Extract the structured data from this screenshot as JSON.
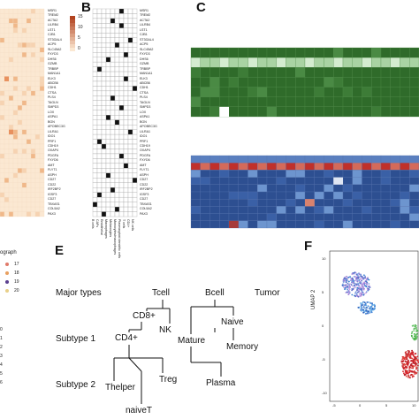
{
  "panels": {
    "B": "B",
    "C": "C",
    "E": "E",
    "F": "F"
  },
  "genes": [
    "MSR1",
    "TREM2",
    "ACTA2",
    "LILRB4",
    "LST1",
    "CJB1",
    "ST3GAL4",
    "ACP5",
    "SLC45A2",
    "FXYD3",
    "DHS6",
    "GZMB",
    "TRBBP",
    "MAN1A1",
    "ELK3",
    "ABCB6",
    "CDH1",
    "CTSA",
    "PLS4",
    "TAGLN",
    "SMPD3",
    "LOX",
    "ASPA1",
    "BGN",
    "APOBEC3G",
    "LILRA1",
    "IDO1",
    "PRF1",
    "CDH19",
    "OXAP4",
    "PDGFA",
    "FXYD6",
    "AMT",
    "FLYT1",
    "ASPH",
    "CD27",
    "CD22",
    "IRF2BP2",
    "IGSF3",
    "CD27",
    "TBXAS1",
    "COL5A2",
    "PAX3"
  ],
  "panel_a_legend": [
    "15",
    "10",
    "5",
    "0"
  ],
  "panel_b_columns": [
    "B cells",
    "CAFs",
    "Endothelial",
    "Macrophages",
    "Melanocytes",
    "Monocytes/macrophages",
    "Plasmacytoid dendritic cells",
    "T cells",
    "CD4+",
    "NK cells"
  ],
  "panel_d_legend": {
    "title_fragment": "ograph",
    "items": [
      {
        "label": "17",
        "color": "#e07a6a"
      },
      {
        "label": "18",
        "color": "#e8a060"
      },
      {
        "label": "19",
        "color": "#5a3f8f"
      },
      {
        "label": "20",
        "color": "#e8d08a"
      }
    ],
    "left_items": [
      "0",
      "1",
      "2",
      "3",
      "4",
      "5",
      "6"
    ]
  },
  "tree": {
    "rows": [
      "Major types",
      "Subtype 1",
      "Subtype 2"
    ],
    "nodes": {
      "tcell": "Tcell",
      "bcell": "Bcell",
      "tumor": "Tumor",
      "cd8": "CD8+",
      "nk": "NK",
      "naive": "Naive",
      "cd4": "CD4+",
      "mature": "Mature",
      "memory": "Memory",
      "thelper": "Thelper",
      "treg": "Treg",
      "plasma": "Plasma",
      "naivet": "naiveT"
    }
  },
  "umap": {
    "ylabel": "UMAP 2",
    "xticks": [
      "-5",
      "0",
      "5",
      "10"
    ],
    "yticks": [
      "10",
      "5",
      "0",
      "-5",
      "-10"
    ]
  },
  "colors": {
    "green_dark": "#2f6b2a",
    "green_light": "#b6dcb0",
    "blue_dark": "#2d4f91",
    "blue_light": "#8fb0d6",
    "red": "#c0302a",
    "heat_base": "#fbe8d2",
    "heat_hot": "#b2431f"
  }
}
